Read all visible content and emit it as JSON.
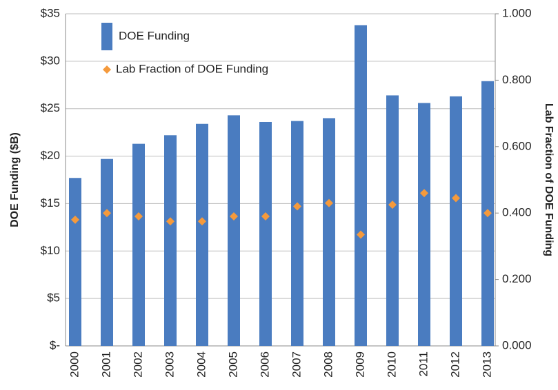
{
  "chart_data": {
    "type": "bar_dual",
    "categories": [
      "2000",
      "2001",
      "2002",
      "2003",
      "2004",
      "2005",
      "2006",
      "2007",
      "2008",
      "2009",
      "2010",
      "2011",
      "2012",
      "2013"
    ],
    "series": [
      {
        "name": "DOE Funding",
        "color": "#4a7cc0",
        "type": "bar",
        "values": [
          17.7,
          19.7,
          21.3,
          22.2,
          23.4,
          24.3,
          23.6,
          23.7,
          24.0,
          33.8,
          26.4,
          25.6,
          26.3,
          27.9
        ]
      },
      {
        "name": "Lab Fraction of DOE Funding",
        "color": "#f59a3c",
        "type": "scatter",
        "axis": "y2",
        "values": [
          0.38,
          0.4,
          0.39,
          0.375,
          0.375,
          0.39,
          0.39,
          0.42,
          0.43,
          0.335,
          0.425,
          0.46,
          0.445,
          0.4
        ]
      }
    ],
    "ylabel": "DOE Funding ($B)",
    "y2label": "Lab Fraction of DOE Funding",
    "ylim": [
      0,
      35
    ],
    "yticks": [
      {
        "value": 0,
        "label": "$-"
      },
      {
        "value": 5,
        "label": "$5"
      },
      {
        "value": 10,
        "label": "$10"
      },
      {
        "value": 15,
        "label": "$15"
      },
      {
        "value": 20,
        "label": "$20"
      },
      {
        "value": 25,
        "label": "$25"
      },
      {
        "value": 30,
        "label": "$30"
      },
      {
        "value": 35,
        "label": "$35"
      }
    ],
    "y2lim": [
      0,
      1
    ],
    "y2ticks": [
      {
        "value": 0,
        "label": "0.000"
      },
      {
        "value": 0.2,
        "label": "0.200"
      },
      {
        "value": 0.4,
        "label": "0.400"
      },
      {
        "value": 0.6,
        "label": "0.600"
      },
      {
        "value": 0.8,
        "label": "0.800"
      },
      {
        "value": 1,
        "label": "1.000"
      }
    ],
    "grid": true,
    "legend": "upper left"
  }
}
